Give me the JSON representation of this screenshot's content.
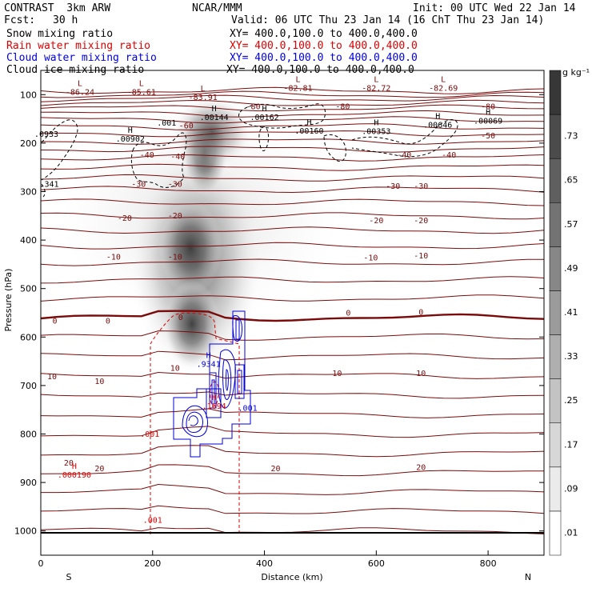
{
  "header": {
    "model": "CONTRAST  3km ARW",
    "center": "NCAR/MMM",
    "init": "Init: 00 UTC Wed 22 Jan 14",
    "fcst_label": "Fcst:",
    "fcst_value": "30 h",
    "valid": "Valid: 06 UTC Thu 23 Jan 14 (16 ChT Thu 23 Jan 14)"
  },
  "fields": [
    {
      "name": "Snow mixing ratio",
      "xy": "XY= 400.0,100.0 to 400.0,400.0",
      "color": "#000000"
    },
    {
      "name": "Rain water mixing ratio",
      "xy": "XY= 400.0,100.0 to 400.0,400.0",
      "color": "#e00000"
    },
    {
      "name": "Cloud water mixing ratio",
      "xy": "XY= 400.0,100.0 to 400.0,400.0",
      "color": "#0000e0"
    },
    {
      "name": "Cloud ice mixing ratio",
      "xy": "XY= 400.0,100.0 to 400.0,400.0",
      "color": "#000000"
    }
  ],
  "chart_data": {
    "type": "cross-section",
    "xlabel": "Distance (km)",
    "ylabel": "Pressure (hPa)",
    "xlim": [
      0,
      900
    ],
    "ylim": [
      1050,
      50
    ],
    "xticks": [
      0,
      200,
      400,
      600,
      800
    ],
    "yticks": [
      100,
      200,
      300,
      400,
      500,
      600,
      700,
      800,
      900,
      1000
    ],
    "end_labels": {
      "left": "S",
      "right": "N"
    },
    "colorbar": {
      "units": "g kg⁻¹",
      "levels": [
        ".01",
        ".09",
        ".17",
        ".25",
        ".33",
        ".41",
        ".49",
        ".57",
        ".65",
        ".73"
      ]
    },
    "temperature_isotherm_labels": [
      {
        "value": "-80",
        "x": 380,
        "p": 130
      },
      {
        "value": "-80",
        "x": 540,
        "p": 130
      },
      {
        "value": "-80",
        "x": 800,
        "p": 130
      },
      {
        "value": "-60",
        "x": 260,
        "p": 170
      },
      {
        "value": "-50",
        "x": 800,
        "p": 190
      },
      {
        "value": "-40",
        "x": 190,
        "p": 230
      },
      {
        "value": "-40",
        "x": 245,
        "p": 233
      },
      {
        "value": "-40",
        "x": 650,
        "p": 230
      },
      {
        "value": "-40",
        "x": 730,
        "p": 230
      },
      {
        "value": "-30",
        "x": 175,
        "p": 290
      },
      {
        "value": "-30",
        "x": 240,
        "p": 290
      },
      {
        "value": "-30",
        "x": 630,
        "p": 294
      },
      {
        "value": "-30",
        "x": 680,
        "p": 294
      },
      {
        "value": "-20",
        "x": 150,
        "p": 360
      },
      {
        "value": "-20",
        "x": 240,
        "p": 355
      },
      {
        "value": "-20",
        "x": 600,
        "p": 365
      },
      {
        "value": "-20",
        "x": 680,
        "p": 365
      },
      {
        "value": "-10",
        "x": 130,
        "p": 440
      },
      {
        "value": "-10",
        "x": 240,
        "p": 440
      },
      {
        "value": "-10",
        "x": 590,
        "p": 442
      },
      {
        "value": "-10",
        "x": 680,
        "p": 438
      },
      {
        "value": "0",
        "x": 25,
        "p": 572
      },
      {
        "value": "0",
        "x": 120,
        "p": 572
      },
      {
        "value": "0",
        "x": 250,
        "p": 565
      },
      {
        "value": "0",
        "x": 550,
        "p": 556
      },
      {
        "value": "0",
        "x": 680,
        "p": 554
      },
      {
        "value": "10",
        "x": 20,
        "p": 687
      },
      {
        "value": "10",
        "x": 105,
        "p": 697
      },
      {
        "value": "10",
        "x": 240,
        "p": 670
      },
      {
        "value": "10",
        "x": 530,
        "p": 680
      },
      {
        "value": "10",
        "x": 680,
        "p": 680
      },
      {
        "value": "20",
        "x": 50,
        "p": 865
      },
      {
        "value": "20",
        "x": 105,
        "p": 877
      },
      {
        "value": "20",
        "x": 420,
        "p": 877
      },
      {
        "value": "20",
        "x": 680,
        "p": 874
      }
    ],
    "low_labels": [
      {
        "value": "-86.24",
        "x": 70,
        "p": 100
      },
      {
        "value": "-85.61",
        "x": 180,
        "p": 100
      },
      {
        "value": "-83.91",
        "x": 290,
        "p": 111
      },
      {
        "value": "-82.81",
        "x": 460,
        "p": 92
      },
      {
        "value": "-82.72",
        "x": 600,
        "p": 92
      },
      {
        "value": "-82.69",
        "x": 720,
        "p": 92
      }
    ],
    "high_labels": [
      {
        "value": ".00144",
        "x": 310,
        "p": 152
      },
      {
        "value": ".00162",
        "x": 400,
        "p": 152
      },
      {
        "value": ".00902",
        "x": 160,
        "p": 197
      },
      {
        "value": ".00160",
        "x": 480,
        "p": 180
      },
      {
        "value": ".00353",
        "x": 600,
        "p": 181
      },
      {
        "value": ".00646",
        "x": 710,
        "p": 168
      },
      {
        "value": ".00069",
        "x": 800,
        "p": 160
      },
      {
        "value": ".9341",
        "x": 300,
        "p": 661
      },
      {
        "value": ".1694",
        "x": 310,
        "p": 748
      },
      {
        "value": ".000190",
        "x": 60,
        "p": 890
      }
    ],
    "other_labels": [
      {
        "value": ".001",
        "x": 225,
        "p": 164,
        "color": "#000000"
      },
      {
        "value": ".0933",
        "x": 10,
        "p": 187,
        "color": "#000000"
      },
      {
        "value": ".341",
        "x": 15,
        "p": 290,
        "color": "#000000"
      },
      {
        "value": ".001",
        "x": 370,
        "p": 752,
        "color": "#0000e0"
      },
      {
        "value": ".001",
        "x": 195,
        "p": 806,
        "color": "#e00000"
      },
      {
        "value": ".001",
        "x": 200,
        "p": 983,
        "color": "#e00000"
      }
    ]
  }
}
